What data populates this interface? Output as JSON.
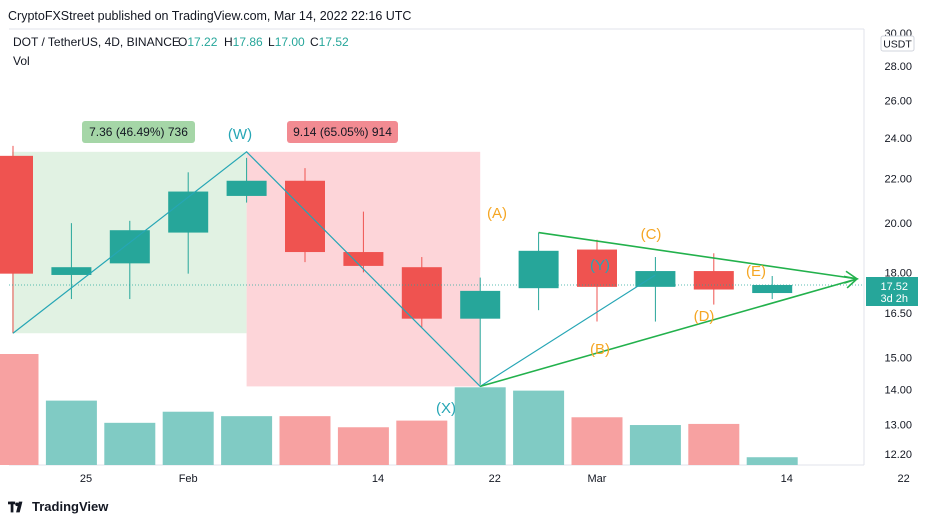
{
  "publisher_line": "CryptoFXStreet published on TradingView.com, Mar 14, 2022 22:16 UTC",
  "footer_brand": "TradingView",
  "legend": {
    "symbol": "DOT / TetherUS, 4D, BINANCE",
    "o_label": "O",
    "o_value": "17.22",
    "h_label": "H",
    "h_value": "17.86",
    "l_label": "L",
    "l_value": "17.00",
    "c_label": "C",
    "c_value": "17.52",
    "vol_label": "Vol"
  },
  "price_axis": {
    "currency": "USDT",
    "last_price": "17.52",
    "countdown": "3d 2h"
  },
  "colors": {
    "up": "#26a69a",
    "down": "#ef5350",
    "vol_up": "#80cbc4",
    "vol_down": "#f7a1a1",
    "wave_orange": "#f5a623",
    "wave_teal": "#26a6b5",
    "trendline": "#22b14c",
    "range_up_fill": "#e1f2e3",
    "range_down_fill": "#fdd5d9",
    "range_up_label": "#a5d6a7",
    "range_down_label": "#f28b92"
  },
  "chart_data": {
    "type": "candlestick",
    "symbol": "DOT / TetherUS",
    "interval": "4D",
    "exchange": "BINANCE",
    "y_scale": "log",
    "ylim": [
      12.0,
      30.0
    ],
    "y_ticks": [
      "12.20",
      "13.00",
      "14.00",
      "15.00",
      "16.50",
      "18.00",
      "20.00",
      "22.00",
      "24.00",
      "26.00",
      "28.00",
      "30.00"
    ],
    "x_ticks": [
      {
        "label": "25",
        "date": "2022-01-25"
      },
      {
        "label": "Feb",
        "date": "2022-02-01"
      },
      {
        "label": "14",
        "date": "2022-02-14"
      },
      {
        "label": "22",
        "date": "2022-02-22"
      },
      {
        "label": "Mar",
        "date": "2022-03-01"
      },
      {
        "label": "14",
        "date": "2022-03-14"
      },
      {
        "label": "22",
        "date": "2022-03-22"
      }
    ],
    "candles": [
      {
        "date": "2022-01-20",
        "open": 23.1,
        "high": 23.6,
        "low": 15.8,
        "close": 17.95,
        "volume": 1.0
      },
      {
        "date": "2022-01-24",
        "open": 17.9,
        "high": 20.0,
        "low": 17.0,
        "close": 18.2,
        "volume": 0.58
      },
      {
        "date": "2022-01-28",
        "open": 18.35,
        "high": 20.1,
        "low": 17.0,
        "close": 19.7,
        "volume": 0.38
      },
      {
        "date": "2022-02-01",
        "open": 19.6,
        "high": 22.3,
        "low": 17.95,
        "close": 21.4,
        "volume": 0.48
      },
      {
        "date": "2022-02-05",
        "open": 21.2,
        "high": 23.0,
        "low": 20.9,
        "close": 21.9,
        "volume": 0.44
      },
      {
        "date": "2022-02-09",
        "open": 21.9,
        "high": 22.5,
        "low": 18.4,
        "close": 18.8,
        "volume": 0.44
      },
      {
        "date": "2022-02-13",
        "open": 18.8,
        "high": 20.5,
        "low": 18.0,
        "close": 18.25,
        "volume": 0.34
      },
      {
        "date": "2022-02-17",
        "open": 18.2,
        "high": 18.6,
        "low": 16.0,
        "close": 16.3,
        "volume": 0.4
      },
      {
        "date": "2022-02-21",
        "open": 16.3,
        "high": 17.8,
        "low": 14.15,
        "close": 17.3,
        "volume": 0.7
      },
      {
        "date": "2022-02-25",
        "open": 17.4,
        "high": 19.6,
        "low": 16.6,
        "close": 18.85,
        "volume": 0.67
      },
      {
        "date": "2022-03-01",
        "open": 18.9,
        "high": 19.3,
        "low": 16.2,
        "close": 17.45,
        "volume": 0.43
      },
      {
        "date": "2022-03-05",
        "open": 17.45,
        "high": 18.6,
        "low": 16.2,
        "close": 18.05,
        "volume": 0.36
      },
      {
        "date": "2022-03-09",
        "open": 18.05,
        "high": 18.75,
        "low": 16.8,
        "close": 17.35,
        "volume": 0.37
      },
      {
        "date": "2022-03-13",
        "open": 17.22,
        "high": 17.86,
        "low": 17.0,
        "close": 17.52,
        "volume": 0.07
      }
    ],
    "measurements": [
      {
        "text": "7.36 (46.49%) 736",
        "direction": "up"
      },
      {
        "text": "9.14 (65.05%) 914",
        "direction": "down"
      }
    ],
    "wave_labels": [
      {
        "text": "(W)",
        "price": 23.3
      },
      {
        "text": "(X)",
        "price": 14.1
      },
      {
        "text": "(Y)",
        "price": 17.9
      },
      {
        "text": "(A)",
        "price": 19.6
      },
      {
        "text": "(B)",
        "price": 16.9
      },
      {
        "text": "(C)",
        "price": 19.3
      },
      {
        "text": "(D)",
        "price": 17.0
      },
      {
        "text": "(E)",
        "price": 17.9
      }
    ],
    "series": [
      {
        "values": [
          15.8,
          23.3,
          14.1,
          17.9
        ]
      }
    ]
  }
}
